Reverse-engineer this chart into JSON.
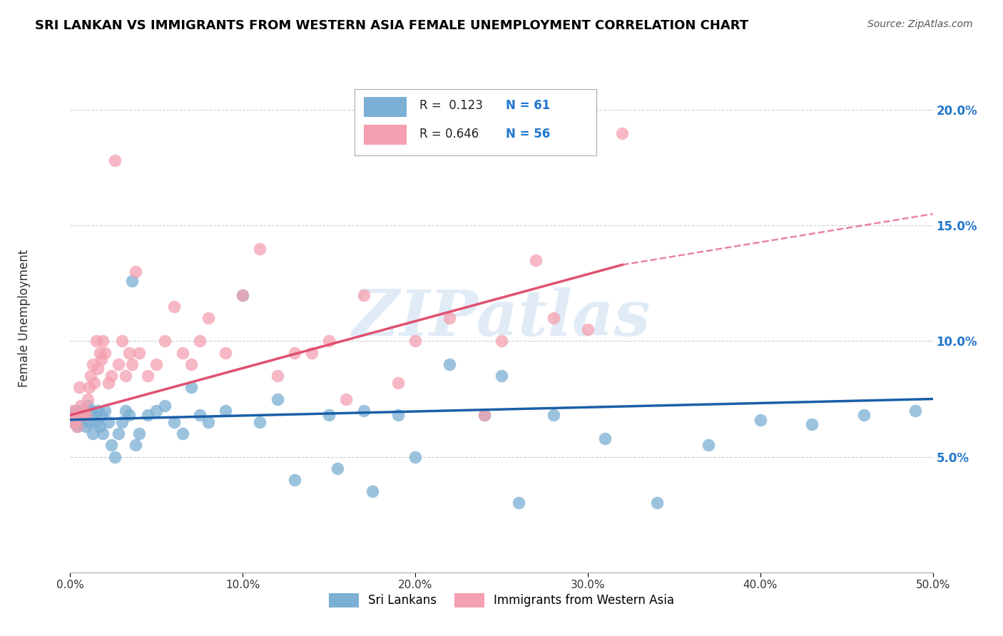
{
  "title": "SRI LANKAN VS IMMIGRANTS FROM WESTERN ASIA FEMALE UNEMPLOYMENT CORRELATION CHART",
  "source": "Source: ZipAtlas.com",
  "ylabel": "Female Unemployment",
  "xlabel_ticks": [
    "0.0%",
    "10.0%",
    "20.0%",
    "30.0%",
    "40.0%",
    "50.0%"
  ],
  "xlabel_vals": [
    0.0,
    0.1,
    0.2,
    0.3,
    0.4,
    0.5
  ],
  "ylabel_ticks": [
    "5.0%",
    "10.0%",
    "15.0%",
    "20.0%"
  ],
  "ylabel_vals": [
    0.05,
    0.1,
    0.15,
    0.2
  ],
  "xlim": [
    0.0,
    0.5
  ],
  "ylim": [
    0.0,
    0.22
  ],
  "R_sri": 0.123,
  "N_sri": 61,
  "R_west": 0.646,
  "N_west": 56,
  "color_sri": "#7bafd4",
  "color_west": "#f4a0b0",
  "line_color_sri": "#1a5fa8",
  "line_color_west": "#e05070",
  "watermark": "ZIPatlas",
  "watermark_color": "#d0e4f7",
  "sri_scatter_x": [
    0.001,
    0.002,
    0.003,
    0.004,
    0.005,
    0.006,
    0.007,
    0.008,
    0.009,
    0.01,
    0.011,
    0.012,
    0.013,
    0.014,
    0.015,
    0.016,
    0.017,
    0.018,
    0.019,
    0.02,
    0.022,
    0.024,
    0.026,
    0.028,
    0.03,
    0.032,
    0.034,
    0.036,
    0.038,
    0.04,
    0.045,
    0.05,
    0.055,
    0.06,
    0.065,
    0.07,
    0.075,
    0.08,
    0.09,
    0.1,
    0.11,
    0.12,
    0.13,
    0.15,
    0.17,
    0.19,
    0.22,
    0.25,
    0.28,
    0.31,
    0.34,
    0.37,
    0.4,
    0.43,
    0.46,
    0.49,
    0.155,
    0.175,
    0.2,
    0.24,
    0.26
  ],
  "sri_scatter_y": [
    0.068,
    0.065,
    0.07,
    0.063,
    0.067,
    0.07,
    0.065,
    0.068,
    0.063,
    0.072,
    0.065,
    0.07,
    0.06,
    0.068,
    0.065,
    0.07,
    0.063,
    0.068,
    0.06,
    0.07,
    0.065,
    0.055,
    0.05,
    0.06,
    0.065,
    0.07,
    0.068,
    0.126,
    0.055,
    0.06,
    0.068,
    0.07,
    0.072,
    0.065,
    0.06,
    0.08,
    0.068,
    0.065,
    0.07,
    0.12,
    0.065,
    0.075,
    0.04,
    0.068,
    0.07,
    0.068,
    0.09,
    0.085,
    0.068,
    0.058,
    0.03,
    0.055,
    0.066,
    0.064,
    0.068,
    0.07,
    0.045,
    0.035,
    0.05,
    0.068,
    0.03
  ],
  "west_scatter_x": [
    0.001,
    0.002,
    0.003,
    0.004,
    0.005,
    0.006,
    0.007,
    0.008,
    0.009,
    0.01,
    0.011,
    0.012,
    0.013,
    0.014,
    0.015,
    0.016,
    0.017,
    0.018,
    0.019,
    0.02,
    0.022,
    0.024,
    0.026,
    0.028,
    0.03,
    0.032,
    0.034,
    0.036,
    0.038,
    0.04,
    0.045,
    0.05,
    0.055,
    0.06,
    0.065,
    0.07,
    0.075,
    0.08,
    0.09,
    0.1,
    0.11,
    0.12,
    0.13,
    0.15,
    0.17,
    0.19,
    0.22,
    0.25,
    0.14,
    0.16,
    0.2,
    0.28,
    0.24,
    0.3,
    0.27,
    0.32
  ],
  "west_scatter_y": [
    0.07,
    0.065,
    0.068,
    0.063,
    0.08,
    0.072,
    0.068,
    0.07,
    0.068,
    0.075,
    0.08,
    0.085,
    0.09,
    0.082,
    0.1,
    0.088,
    0.095,
    0.092,
    0.1,
    0.095,
    0.082,
    0.085,
    0.178,
    0.09,
    0.1,
    0.085,
    0.095,
    0.09,
    0.13,
    0.095,
    0.085,
    0.09,
    0.1,
    0.115,
    0.095,
    0.09,
    0.1,
    0.11,
    0.095,
    0.12,
    0.14,
    0.085,
    0.095,
    0.1,
    0.12,
    0.082,
    0.11,
    0.1,
    0.095,
    0.075,
    0.1,
    0.11,
    0.068,
    0.105,
    0.135,
    0.19
  ],
  "line_west_x0": 0.0,
  "line_west_y0": 0.068,
  "line_west_x1": 0.32,
  "line_west_y1": 0.133,
  "line_west_dash_x1": 0.5,
  "line_west_dash_y1": 0.155,
  "line_sri_x0": 0.0,
  "line_sri_y0": 0.066,
  "line_sri_x1": 0.5,
  "line_sri_y1": 0.075
}
